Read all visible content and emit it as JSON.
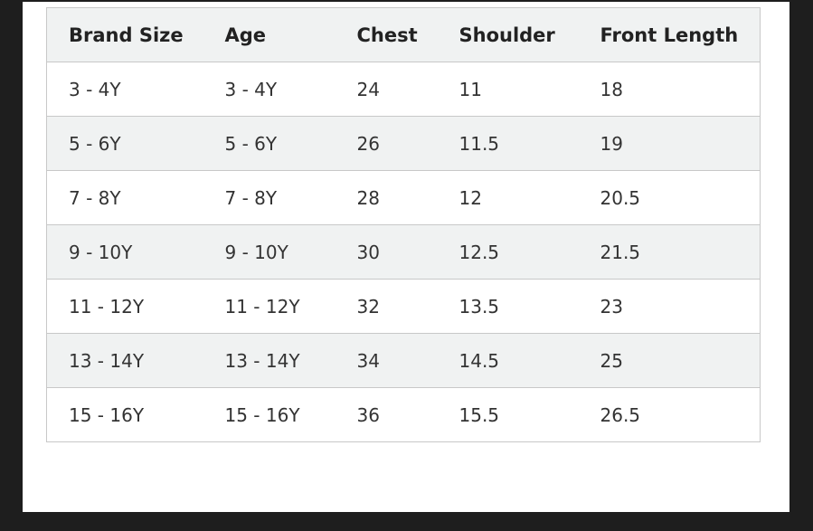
{
  "table": {
    "headers": [
      "Brand Size",
      "Age",
      "Chest",
      "Shoulder",
      "Front Length"
    ],
    "rows": [
      [
        "3 - 4Y",
        "3 - 4Y",
        "24",
        "11",
        "18"
      ],
      [
        "5 - 6Y",
        "5 - 6Y",
        "26",
        "11.5",
        "19"
      ],
      [
        "7 - 8Y",
        "7 - 8Y",
        "28",
        "12",
        "20.5"
      ],
      [
        "9 - 10Y",
        "9 - 10Y",
        "30",
        "12.5",
        "21.5"
      ],
      [
        "11 - 12Y",
        "11 - 12Y",
        "32",
        "13.5",
        "23"
      ],
      [
        "13 - 14Y",
        "13 - 14Y",
        "34",
        "14.5",
        "25"
      ],
      [
        "15 - 16Y",
        "15 - 16Y",
        "36",
        "15.5",
        "26.5"
      ]
    ]
  }
}
